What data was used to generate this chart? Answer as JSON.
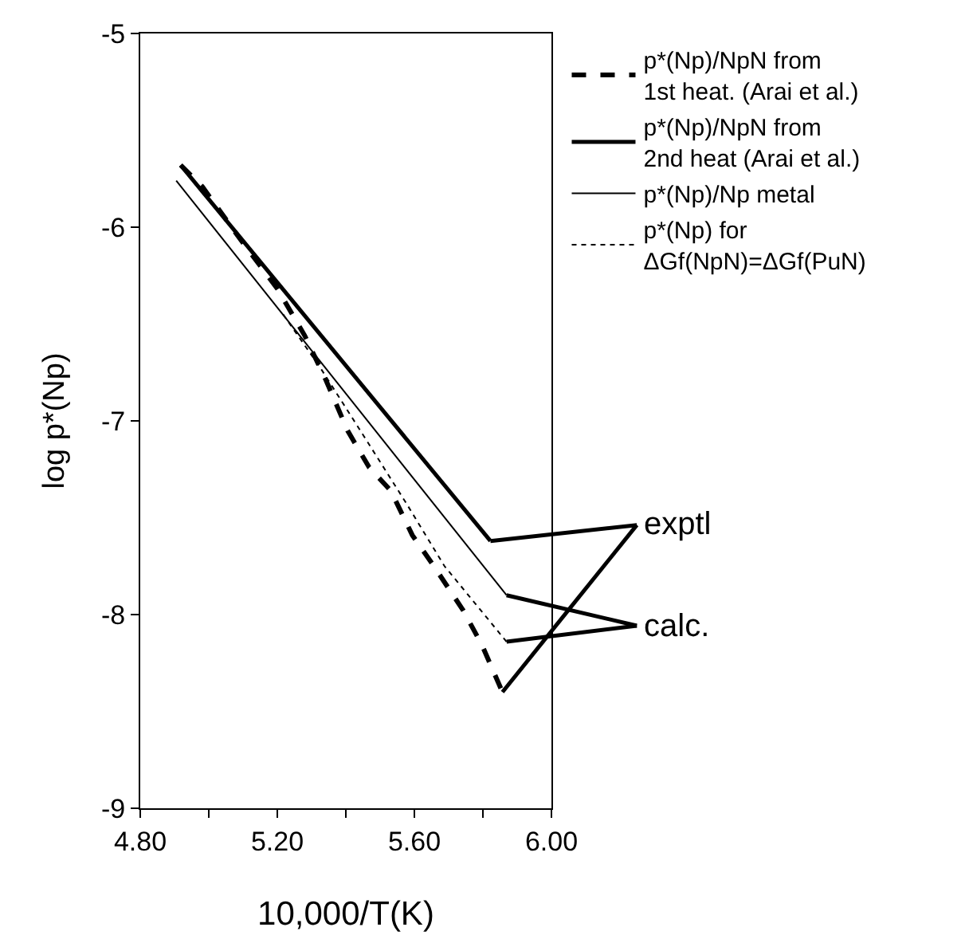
{
  "chart_data": {
    "type": "line",
    "xlabel": "10,000/T(K)",
    "ylabel": "log p*(Np)",
    "xlim": [
      4.8,
      6.0
    ],
    "ylim": [
      -9,
      -5
    ],
    "xticks": [
      {
        "value": 4.8,
        "label": "4.80"
      },
      {
        "value": 5.0,
        "label": null
      },
      {
        "value": 5.2,
        "label": "5.20"
      },
      {
        "value": 5.4,
        "label": null
      },
      {
        "value": 5.6,
        "label": "5.60"
      },
      {
        "value": 5.8,
        "label": null
      },
      {
        "value": 6.0,
        "label": "6.00"
      }
    ],
    "yticks": [
      -5,
      -6,
      -7,
      -8,
      -9
    ],
    "grid": false,
    "legend": "right",
    "marker": "none",
    "series": [
      {
        "name": "p*(Np)/NpN from\n1st heat. (Arai et al.)",
        "color": "#000000",
        "line_style": "dashed",
        "x": [
          4.918,
          4.981,
          5.091,
          5.201,
          5.28,
          5.342,
          5.405,
          5.468,
          5.531,
          5.594,
          5.657,
          5.743,
          5.798,
          5.857
        ],
        "values": [
          -5.68,
          -5.79,
          -6.06,
          -6.32,
          -6.56,
          -6.79,
          -7.05,
          -7.24,
          -7.36,
          -7.59,
          -7.75,
          -7.98,
          -8.16,
          -8.4
        ]
      },
      {
        "name": "p*(Np)/NpN from\n2nd heat (Arai et al.)",
        "color": "#000000",
        "line_style": "solid",
        "x": [
          4.918,
          5.822
        ],
        "values": [
          -5.68,
          -7.62
        ]
      },
      {
        "name": "p*(Np)/Np metal",
        "color": "#000000",
        "line_style": "solid",
        "x": [
          4.905,
          5.869
        ],
        "values": [
          -5.76,
          -7.9
        ]
      },
      {
        "name": "p*(Np) for\nΔGf(NpN)=ΔGf(PuN)",
        "color": "#000000",
        "line_style": "dotted",
        "x": [
          5.217,
          5.327,
          5.453,
          5.578,
          5.688,
          5.869
        ],
        "values": [
          -6.45,
          -6.73,
          -7.08,
          -7.43,
          -7.75,
          -8.14
        ]
      }
    ],
    "annotations": [
      {
        "text": "exptl",
        "x": 5.822,
        "y": -7.62
      },
      {
        "text": "calc.",
        "x": 5.869,
        "y": -8.14
      }
    ]
  }
}
